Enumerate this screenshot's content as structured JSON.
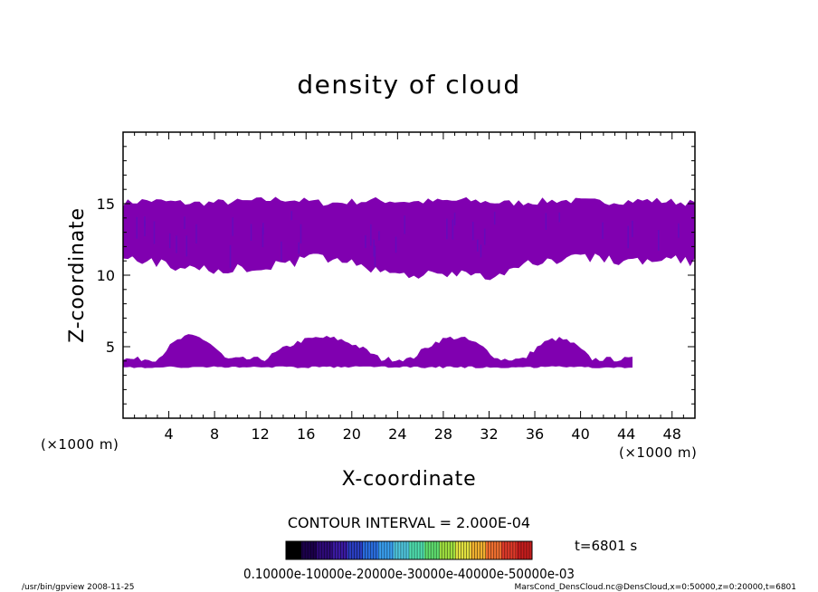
{
  "chart_data": {
    "type": "heatmap",
    "title": "density of cloud",
    "xlabel": "X-coordinate",
    "ylabel": "Z-coordinate",
    "x_unit_left": "(×1000 m)",
    "x_unit_right": "(×1000 m)",
    "xlim": [
      0,
      50
    ],
    "ylim": [
      0,
      20
    ],
    "x_ticks": [
      4,
      8,
      12,
      16,
      20,
      24,
      28,
      32,
      36,
      40,
      44,
      48
    ],
    "y_ticks": [
      5,
      10,
      15
    ],
    "contour_interval_label": "CONTOUR INTERVAL = 2.000E-04",
    "time_label": "t=6801 s",
    "colorbar_labels_text": "0.10000e-10000e-20000e-30000e-40000e-50000e-03",
    "colorbar_colors": [
      "#000000",
      "#1c004c",
      "#2e0a78",
      "#3a1aa0",
      "#2a3ec0",
      "#2a6ee0",
      "#3aa0f0",
      "#50c8e0",
      "#50e0b0",
      "#60e070",
      "#a0e040",
      "#e0e040",
      "#f0b030",
      "#f07030",
      "#e03a2a",
      "#c81e1e"
    ],
    "fill_color": "#8000b0",
    "cloud_layers": [
      {
        "name": "upper cloud",
        "x_range": [
          0,
          50
        ],
        "upper_z": [
          [
            0,
            15.0
          ],
          [
            2,
            15.2
          ],
          [
            6,
            15.0
          ],
          [
            10,
            15.1
          ],
          [
            14,
            15.3
          ],
          [
            18,
            15.0
          ],
          [
            22,
            15.2
          ],
          [
            26,
            15.1
          ],
          [
            30,
            15.2
          ],
          [
            34,
            15.0
          ],
          [
            38,
            15.2
          ],
          [
            42,
            15.1
          ],
          [
            46,
            15.2
          ],
          [
            50,
            15.0
          ]
        ],
        "lower_z": [
          [
            0,
            11.5
          ],
          [
            2,
            11.0
          ],
          [
            5,
            10.6
          ],
          [
            8,
            10.3
          ],
          [
            11,
            10.6
          ],
          [
            14,
            10.8
          ],
          [
            17,
            11.3
          ],
          [
            20,
            11.0
          ],
          [
            23,
            10.2
          ],
          [
            26,
            10.0
          ],
          [
            29,
            10.2
          ],
          [
            31,
            9.8
          ],
          [
            33,
            10.0
          ],
          [
            35,
            10.8
          ],
          [
            38,
            11.0
          ],
          [
            41,
            11.3
          ],
          [
            44,
            11.0
          ],
          [
            47,
            11.2
          ],
          [
            50,
            11.0
          ]
        ]
      },
      {
        "name": "lower cloud",
        "x_range": [
          0,
          44.5
        ],
        "base_z": 3.6,
        "bumps": [
          [
            2.5,
            9.5,
            5.7
          ],
          [
            11.5,
            23.5,
            5.6
          ],
          [
            24.5,
            33.5,
            5.6
          ],
          [
            34.5,
            41.5,
            5.5
          ]
        ]
      }
    ]
  },
  "footer": {
    "left": "/usr/bin/gpview   2008-11-25",
    "right": "MarsCond_DensCloud.nc@DensCloud,x=0:50000,z=0:20000,t=6801"
  }
}
